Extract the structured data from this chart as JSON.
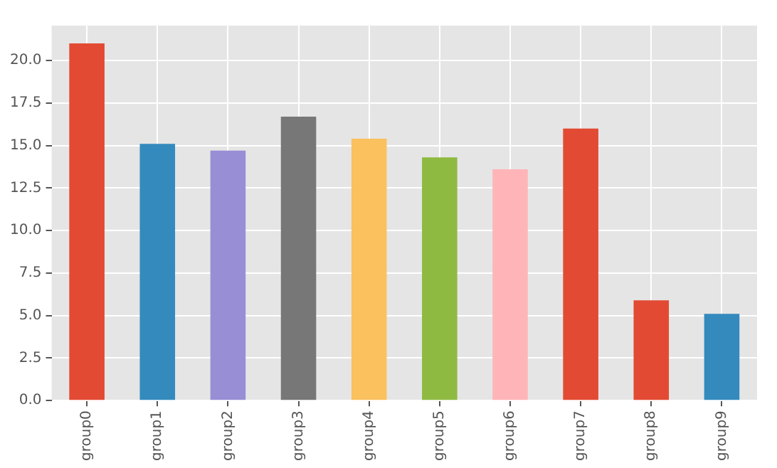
{
  "chart_data": {
    "type": "bar",
    "categories": [
      "group0",
      "group1",
      "group2",
      "group3",
      "group4",
      "group5",
      "group6",
      "group7",
      "group8",
      "group9"
    ],
    "values": [
      21.0,
      15.1,
      14.7,
      16.7,
      15.4,
      14.3,
      13.6,
      16.0,
      5.9,
      5.1
    ],
    "colors": [
      "#e24a33",
      "#348abd",
      "#988ed5",
      "#777777",
      "#fbc15e",
      "#8eba42",
      "#ffb5b8",
      "#e24a33",
      "#e24a33",
      "#348abd"
    ],
    "ylim": [
      0,
      22.05
    ],
    "yticks": [
      {
        "value": 0,
        "label": "0.0"
      },
      {
        "value": 2.5,
        "label": "2.5"
      },
      {
        "value": 5,
        "label": "5.0"
      },
      {
        "value": 7.5,
        "label": "7.5"
      },
      {
        "value": 10,
        "label": "10.0"
      },
      {
        "value": 12.5,
        "label": "12.5"
      },
      {
        "value": 15,
        "label": "15.0"
      },
      {
        "value": 17.5,
        "label": "17.5"
      },
      {
        "value": 20,
        "label": "20.0"
      }
    ],
    "grid": true,
    "legend": false
  }
}
